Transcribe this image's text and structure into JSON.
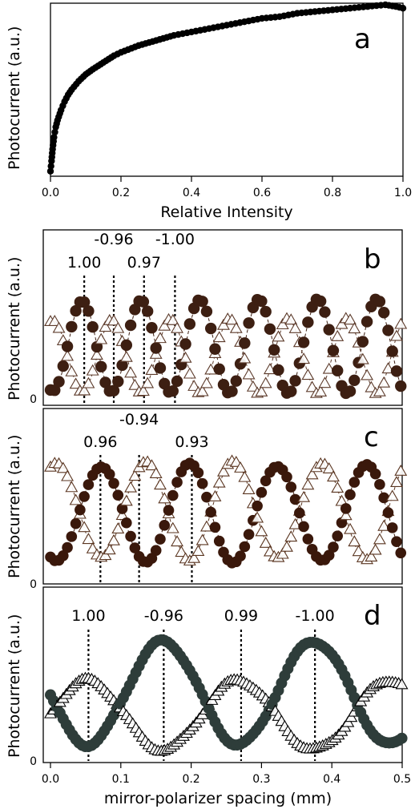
{
  "colors": {
    "panel_a_markers": "#000000",
    "panel_b_circles": "#3d1f12",
    "panel_b_triangles": "#5c3a2a",
    "panel_c_circles": "#3a180b",
    "panel_c_triangles": "#5a3520",
    "panel_d_circles": "#2e3d3a",
    "panel_d_triangles": "#000000"
  },
  "chart_data": [
    {
      "panel": "a",
      "type": "scatter",
      "label": "a",
      "xlabel": "Relative Intensity",
      "ylabel": "Photocurrent (a.u.)",
      "xlim": [
        0,
        1.0
      ],
      "ylim": [
        0,
        1.0
      ],
      "xticks": [
        "0.0",
        "0.2",
        "0.4",
        "0.6",
        "0.8",
        "1.0"
      ],
      "xtick_values": [
        0,
        0.2,
        0.4,
        0.6,
        0.8,
        1.0
      ],
      "series": [
        {
          "marker": "circle-filled",
          "points": [
            [
              0.0,
              0.02
            ],
            [
              0.003,
              0.08
            ],
            [
              0.006,
              0.15
            ],
            [
              0.01,
              0.22
            ],
            [
              0.015,
              0.28
            ],
            [
              0.02,
              0.32
            ],
            [
              0.03,
              0.38
            ],
            [
              0.04,
              0.43
            ],
            [
              0.05,
              0.47
            ],
            [
              0.06,
              0.5
            ],
            [
              0.08,
              0.55
            ],
            [
              0.1,
              0.59
            ],
            [
              0.12,
              0.62
            ],
            [
              0.15,
              0.66
            ],
            [
              0.18,
              0.7
            ],
            [
              0.2,
              0.72
            ],
            [
              0.25,
              0.76
            ],
            [
              0.3,
              0.79
            ],
            [
              0.35,
              0.82
            ],
            [
              0.4,
              0.84
            ],
            [
              0.45,
              0.86
            ],
            [
              0.5,
              0.88
            ],
            [
              0.55,
              0.9
            ],
            [
              0.6,
              0.92
            ],
            [
              0.65,
              0.93
            ],
            [
              0.7,
              0.95
            ],
            [
              0.75,
              0.96
            ],
            [
              0.8,
              0.97
            ],
            [
              0.85,
              0.98
            ],
            [
              0.9,
              0.99
            ],
            [
              0.95,
              1.0
            ],
            [
              0.98,
              0.99
            ],
            [
              1.0,
              0.98
            ]
          ]
        }
      ]
    },
    {
      "panel": "b",
      "type": "scatter",
      "label": "b",
      "ylabel": "Photocurrent (a.u.)",
      "ytick_zero": "0",
      "xlim": [
        0,
        0.5
      ],
      "ylim": [
        0,
        1.0
      ],
      "wave": {
        "period": 0.0836,
        "circle_peak_x": 0.0455,
        "circle_amp": [
          0.05,
          0.62
        ],
        "triangle_amp": [
          0.05,
          0.5
        ],
        "x_step": 0.006
      },
      "annotations": [
        {
          "text": "1.00",
          "x": 0.048,
          "row": "low"
        },
        {
          "text": "-0.96",
          "x": 0.09,
          "row": "high"
        },
        {
          "text": "0.97",
          "x": 0.133,
          "row": "low"
        },
        {
          "text": "-1.00",
          "x": 0.177,
          "row": "high"
        }
      ]
    },
    {
      "panel": "c",
      "type": "scatter",
      "label": "c",
      "ylabel": "Photocurrent (a.u.)",
      "ytick_zero": "0",
      "xlim": [
        0,
        0.5
      ],
      "ylim": [
        0,
        1.0
      ],
      "wave": {
        "period": 0.1255,
        "circle_peak_x": 0.072,
        "circle_amp": [
          0.1,
          0.7
        ],
        "triangle_amp": [
          0.12,
          0.72
        ],
        "x_step": 0.006
      },
      "annotations": [
        {
          "text": "0.96",
          "x": 0.071,
          "row": "low"
        },
        {
          "text": "-0.94",
          "x": 0.126,
          "row": "high"
        },
        {
          "text": "0.93",
          "x": 0.201,
          "row": "low"
        }
      ]
    },
    {
      "panel": "d",
      "type": "scatter",
      "label": "d",
      "xlabel": "mirror-polarizer spacing (mm)",
      "ylabel": "Photocurrent (a.u.)",
      "ytick_zero": "0",
      "xlim": [
        0,
        0.5
      ],
      "ylim": [
        0,
        1.0
      ],
      "xticks": [
        "0.0",
        "0.1",
        "0.2",
        "0.3",
        "0.4",
        "0.5"
      ],
      "xtick_values": [
        0,
        0.1,
        0.2,
        0.3,
        0.4,
        0.5
      ],
      "wave": {
        "period": 0.215,
        "circle_peak_x": 0.16,
        "circle_amp": [
          0.08,
          0.72
        ],
        "triangle_amp": [
          0.05,
          0.48
        ],
        "x_step": 0.0045
      },
      "annotations": [
        {
          "text": "1.00",
          "x": 0.054,
          "row": "same"
        },
        {
          "text": "-0.96",
          "x": 0.161,
          "row": "same"
        },
        {
          "text": "0.99",
          "x": 0.271,
          "row": "same"
        },
        {
          "text": "-1.00",
          "x": 0.376,
          "row": "same"
        }
      ]
    }
  ]
}
